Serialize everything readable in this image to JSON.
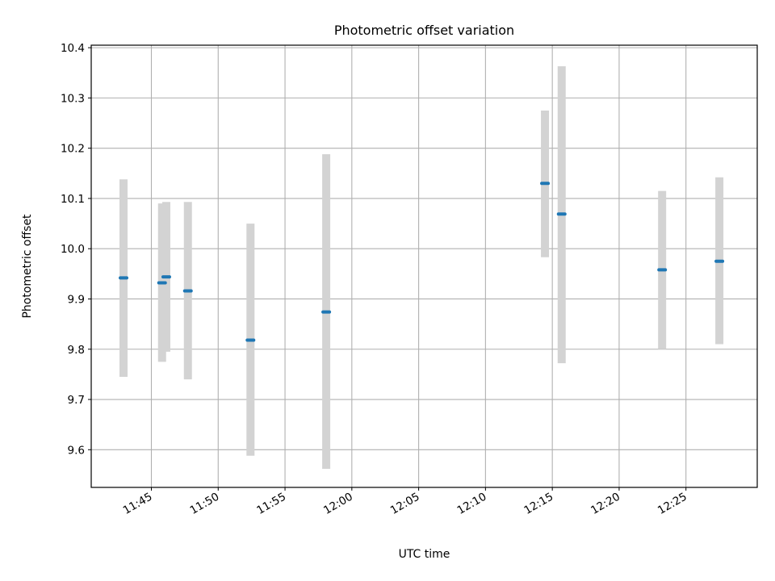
{
  "chart_data": {
    "type": "scatter",
    "title": "Photometric offset variation",
    "xlabel": "UTC time",
    "ylabel": "Photometric offset",
    "x_unit": "time of day (HH:MM)",
    "xlim": [
      "11:40:30",
      "12:30:20"
    ],
    "ylim": [
      9.525,
      10.405
    ],
    "xticks": [
      "11:45",
      "11:50",
      "11:55",
      "12:00",
      "12:05",
      "12:10",
      "12:15",
      "12:20",
      "12:25"
    ],
    "yticks": [
      9.6,
      9.7,
      9.8,
      9.9,
      10.0,
      10.1,
      10.2,
      10.3,
      10.4
    ],
    "ytick_labels": [
      "9.6",
      "9.7",
      "9.8",
      "9.9",
      "10.0",
      "10.1",
      "10.2",
      "10.3",
      "10.4"
    ],
    "grid": true,
    "colors": {
      "points": "#1f77b4",
      "error_bars": "#d3d3d3",
      "grid": "#b0b0b0"
    },
    "points": [
      {
        "x": "11:42:55",
        "y": 9.942,
        "err_low": 9.745,
        "err_high": 10.138
      },
      {
        "x": "11:45:48",
        "y": 9.932,
        "err_low": 9.775,
        "err_high": 10.09
      },
      {
        "x": "11:46:07",
        "y": 9.944,
        "err_low": 9.795,
        "err_high": 10.093
      },
      {
        "x": "11:47:44",
        "y": 9.916,
        "err_low": 9.74,
        "err_high": 10.093
      },
      {
        "x": "11:52:25",
        "y": 9.818,
        "err_low": 9.588,
        "err_high": 10.05
      },
      {
        "x": "11:58:05",
        "y": 9.874,
        "err_low": 9.562,
        "err_high": 10.188
      },
      {
        "x": "12:14:27",
        "y": 10.13,
        "err_low": 9.983,
        "err_high": 10.275
      },
      {
        "x": "12:15:42",
        "y": 10.069,
        "err_low": 9.772,
        "err_high": 10.363
      },
      {
        "x": "12:23:13",
        "y": 9.958,
        "err_low": 9.8,
        "err_high": 10.115
      },
      {
        "x": "12:27:30",
        "y": 9.975,
        "err_low": 9.81,
        "err_high": 10.142
      }
    ]
  }
}
